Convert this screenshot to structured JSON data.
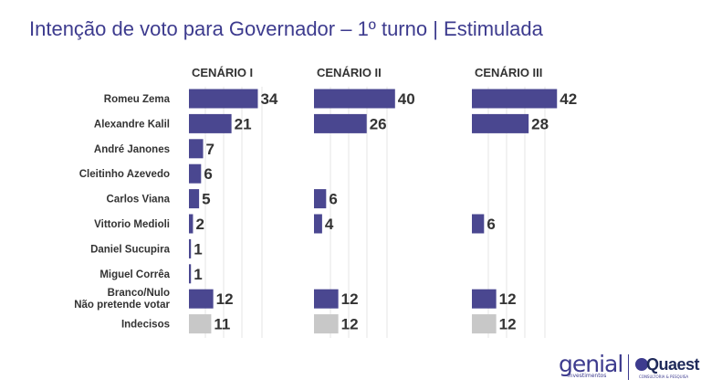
{
  "title": "Intenção de voto para Governador – 1º turno | Estimulada",
  "logos": {
    "genial": "genial",
    "genial_sub": "investimentos",
    "quaest": "Quaest",
    "quaest_sub": "CONSULTORIA & PESQUISA"
  },
  "chart_data": {
    "type": "bar",
    "orientation": "horizontal",
    "categories": [
      "Romeu Zema",
      "Alexandre Kalil",
      "André Janones",
      "Cleitinho Azevedo",
      "Carlos Viana",
      "Vittorio Medioli",
      "Daniel Sucupira",
      "Miguel Corrêa",
      "Branco/Nulo\nNão pretende votar",
      "Indecisos"
    ],
    "series": [
      {
        "name": "CENÁRIO I",
        "values": [
          34,
          21,
          7,
          6,
          5,
          2,
          1,
          1,
          12,
          11
        ]
      },
      {
        "name": "CENÁRIO II",
        "values": [
          40,
          26,
          null,
          null,
          6,
          4,
          null,
          null,
          12,
          12
        ]
      },
      {
        "name": "CENÁRIO III",
        "values": [
          42,
          28,
          null,
          null,
          null,
          6,
          null,
          null,
          12,
          12
        ]
      }
    ],
    "colors": {
      "bar": "#4a4790",
      "indecisos": "#c8c8c8",
      "grid": "#e6e6e6",
      "label": "#333333"
    },
    "grid": true
  }
}
